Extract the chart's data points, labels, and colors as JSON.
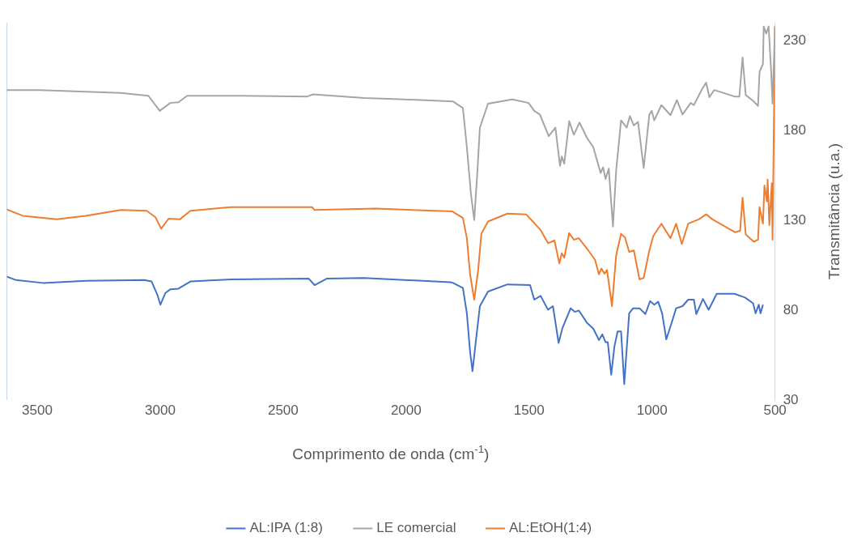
{
  "chart_data": {
    "type": "line",
    "xlabel": "Comprimento de onda (cm$^{-1}$)",
    "ylabel": "Transmitância (u.a.)",
    "xlim": [
      3625,
      500
    ],
    "xticks": [
      3500,
      3000,
      2500,
      2000,
      1500,
      1000,
      500
    ],
    "ylim": [
      30,
      240
    ],
    "yticks": [
      30,
      80,
      130,
      180,
      230
    ],
    "grid": false,
    "legend": "bottom",
    "marker": "none",
    "line_style": "solid",
    "series": [
      {
        "name": "AL:IPA (1:8)",
        "color": "#4472c4",
        "x": [
          3625,
          3586,
          3477,
          3302,
          3065,
          3035,
          3012,
          2999,
          2979,
          2959,
          2926,
          2877,
          2712,
          2396,
          2372,
          2323,
          2171,
          1819,
          1809,
          1769,
          1753,
          1740,
          1730,
          1717,
          1700,
          1667,
          1588,
          1496,
          1479,
          1453,
          1423,
          1403,
          1380,
          1364,
          1331,
          1314,
          1298,
          1265,
          1239,
          1216,
          1202,
          1189,
          1180,
          1166,
          1153,
          1140,
          1126,
          1113,
          1093,
          1077,
          1051,
          1027,
          1008,
          991,
          975,
          959,
          942,
          925,
          902,
          876,
          853,
          830,
          820,
          793,
          770,
          737,
          665,
          622,
          589,
          579,
          566,
          559,
          549
        ],
        "values": [
          98.8,
          96.8,
          95.2,
          96.4,
          96.8,
          96.0,
          88.8,
          83.1,
          89.6,
          91.6,
          92.0,
          96.0,
          97.2,
          97.6,
          94.0,
          97.6,
          98.0,
          95.6,
          95.2,
          92.4,
          78.3,
          57.0,
          46.1,
          62.2,
          82.3,
          90.4,
          94.4,
          94.0,
          85.9,
          88.0,
          80.3,
          82.3,
          61.8,
          70.2,
          81.1,
          79.1,
          79.9,
          73.1,
          69.8,
          63.4,
          66.6,
          62.2,
          62.2,
          44.1,
          59.8,
          68.2,
          68.2,
          38.9,
          78.3,
          81.1,
          81.1,
          77.9,
          85.1,
          83.1,
          84.7,
          78.3,
          63.8,
          71.0,
          81.1,
          82.3,
          85.9,
          85.9,
          77.9,
          86.3,
          80.3,
          89.2,
          89.2,
          87.1,
          83.9,
          78.3,
          83.1,
          78.3,
          83.1
        ]
      },
      {
        "name": "LE comercial",
        "color": "#a5a5a5",
        "x": [
          3625,
          3490,
          3325,
          3160,
          3048,
          3002,
          2959,
          2926,
          2890,
          2666,
          2402,
          2379,
          2171,
          2007,
          1809,
          1769,
          1753,
          1736,
          1723,
          1710,
          1700,
          1667,
          1568,
          1502,
          1479,
          1456,
          1420,
          1393,
          1374,
          1367,
          1357,
          1337,
          1318,
          1295,
          1265,
          1239,
          1209,
          1199,
          1189,
          1176,
          1159,
          1146,
          1126,
          1103,
          1090,
          1074,
          1057,
          1034,
          1011,
          1001,
          991,
          962,
          925,
          899,
          876,
          843,
          830,
          797,
          780,
          767,
          747,
          665,
          645,
          632,
          619,
          589,
          569,
          563,
          549,
          546,
          536,
          526,
          516,
          510,
          500
        ],
        "values": [
          202.6,
          202.6,
          201.8,
          201.0,
          199.4,
          191.0,
          195.4,
          195.8,
          199.4,
          199.4,
          199.0,
          200.2,
          198.2,
          197.4,
          196.2,
          192.6,
          170.8,
          144.3,
          130.2,
          157.6,
          181.7,
          195.0,
          197.4,
          195.4,
          191.0,
          189.0,
          176.9,
          181.7,
          160.4,
          165.6,
          161.6,
          185.3,
          177.7,
          184.5,
          176.1,
          170.8,
          156.4,
          159.6,
          153.1,
          158.8,
          126.6,
          157.6,
          185.7,
          181.7,
          188.1,
          182.9,
          184.9,
          159.2,
          189.0,
          191.0,
          185.7,
          194.2,
          188.6,
          197.0,
          189.0,
          195.4,
          194.2,
          203.0,
          206.7,
          198.6,
          202.6,
          199.0,
          199.0,
          220.7,
          199.8,
          196.6,
          193.8,
          212.7,
          217.1,
          238.0,
          234.0,
          238.0,
          213.9,
          195.0,
          238.0
        ]
      },
      {
        "name": "AL:EtOH(1:4)",
        "color": "#ed7d31",
        "x": [
          3625,
          3559,
          3421,
          3302,
          3160,
          3055,
          3019,
          2996,
          2966,
          2920,
          2877,
          2712,
          2382,
          2372,
          2125,
          1812,
          1769,
          1753,
          1740,
          1723,
          1707,
          1694,
          1667,
          1588,
          1512,
          1479,
          1453,
          1423,
          1397,
          1377,
          1367,
          1357,
          1337,
          1318,
          1298,
          1259,
          1232,
          1216,
          1206,
          1193,
          1183,
          1163,
          1146,
          1126,
          1110,
          1093,
          1074,
          1051,
          1034,
          1011,
          995,
          962,
          925,
          902,
          879,
          853,
          810,
          780,
          754,
          662,
          642,
          632,
          619,
          586,
          569,
          563,
          549,
          543,
          533,
          530,
          523,
          513,
          510,
          500
        ],
        "values": [
          136.2,
          132.6,
          130.6,
          132.6,
          135.8,
          135.4,
          131.8,
          125.4,
          131.0,
          130.6,
          135.4,
          137.4,
          137.4,
          135.8,
          136.6,
          135.0,
          131.4,
          120.1,
          100.0,
          85.9,
          102.4,
          122.6,
          129.4,
          133.8,
          133.4,
          128.6,
          124.6,
          117.3,
          118.9,
          106.1,
          111.7,
          109.3,
          123.0,
          119.3,
          120.1,
          113.3,
          108.1,
          100.0,
          103.2,
          100.4,
          102.4,
          82.3,
          110.5,
          122.6,
          120.5,
          112.5,
          113.3,
          97.2,
          98.0,
          113.3,
          121.3,
          128.2,
          120.1,
          128.2,
          116.9,
          128.2,
          130.6,
          133.4,
          130.6,
          123.4,
          124.2,
          142.7,
          122.2,
          118.1,
          119.3,
          137.4,
          128.2,
          149.5,
          140.7,
          152.7,
          127.4,
          150.7,
          119.3,
          238.0
        ]
      }
    ]
  }
}
